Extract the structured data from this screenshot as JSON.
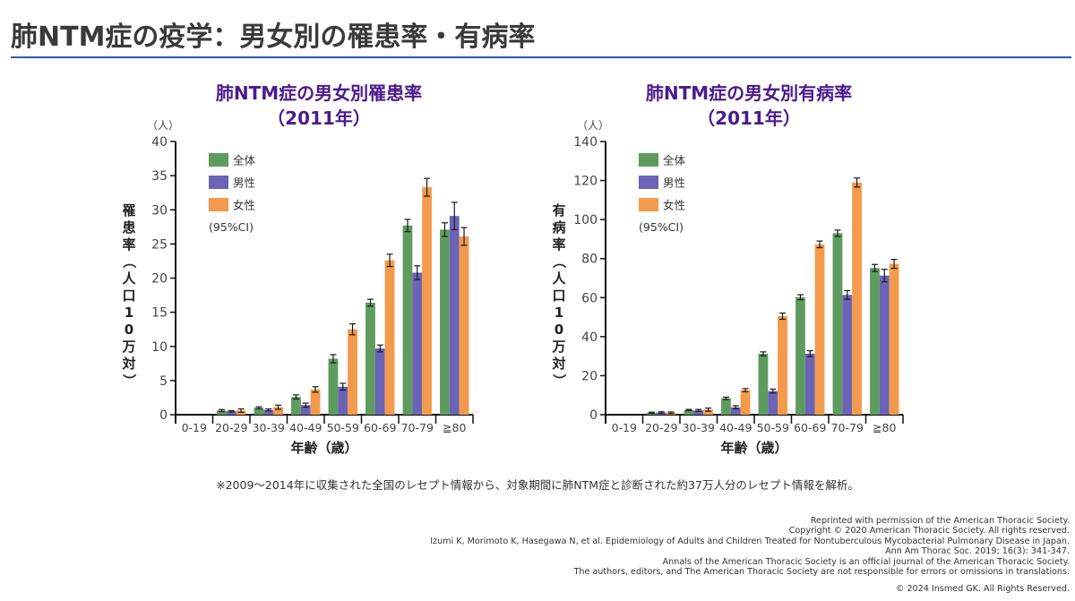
{
  "header": {
    "title": "肺NTM症の疫学：男女別の罹患率・有病率",
    "rule_color": "#2a5db0"
  },
  "colors": {
    "overall": "#5e9b5e",
    "male": "#6b63b5",
    "female": "#f39a4c",
    "chart_title": "#4b1a8c"
  },
  "chart_data": [
    {
      "type": "bar",
      "title": "肺NTM症の男女別罹患率",
      "subtitle": "（2011年）",
      "xlabel": "年齢（歳）",
      "ylabel": "罹患率（人口10万対）",
      "unit": "（人）",
      "ylim": [
        0,
        40
      ],
      "yticks": [
        0,
        5,
        10,
        15,
        20,
        25,
        30,
        35,
        40
      ],
      "categories": [
        "0-19",
        "20-29",
        "30-39",
        "40-49",
        "50-59",
        "60-69",
        "70-79",
        "≧80"
      ],
      "legend": {
        "placement": "top-left",
        "note": "(95%CI)"
      },
      "series": [
        {
          "name": "全体",
          "key": "overall",
          "values": [
            0,
            0.6,
            1.0,
            2.6,
            8.2,
            16.4,
            27.7,
            27.1
          ],
          "ci": [
            0,
            0.15,
            0.15,
            0.3,
            0.6,
            0.5,
            0.9,
            1.0
          ]
        },
        {
          "name": "男性",
          "key": "male",
          "values": [
            0,
            0.5,
            0.7,
            1.4,
            4.1,
            9.7,
            20.8,
            29.1
          ],
          "ci": [
            0,
            0.1,
            0.15,
            0.3,
            0.5,
            0.5,
            1.0,
            2.0
          ]
        },
        {
          "name": "女性",
          "key": "female",
          "values": [
            0,
            0.6,
            1.1,
            3.7,
            12.5,
            22.6,
            33.3,
            26.1
          ],
          "ci": [
            0,
            0.25,
            0.3,
            0.4,
            0.8,
            0.9,
            1.3,
            1.3
          ]
        }
      ],
      "grid": false
    },
    {
      "type": "bar",
      "title": "肺NTM症の男女別有病率",
      "subtitle": "（2011年）",
      "xlabel": "年齢（歳）",
      "ylabel": "有病率（人口10万対）",
      "unit": "（人）",
      "ylim": [
        0,
        140
      ],
      "yticks": [
        0,
        20,
        40,
        60,
        80,
        100,
        120,
        140
      ],
      "categories": [
        "0-19",
        "20-29",
        "30-39",
        "40-49",
        "50-59",
        "60-69",
        "70-79",
        "≧80"
      ],
      "legend": {
        "placement": "top-left",
        "note": "(95%CI)"
      },
      "series": [
        {
          "name": "全体",
          "key": "overall",
          "values": [
            0,
            1.0,
            2.4,
            8.4,
            31.2,
            60.2,
            93.0,
            75.2
          ],
          "ci": [
            0,
            0.3,
            0.3,
            0.6,
            1.0,
            1.3,
            1.6,
            1.8
          ]
        },
        {
          "name": "男性",
          "key": "male",
          "values": [
            0,
            1.1,
            2.2,
            3.8,
            12.1,
            31.3,
            61.4,
            71.3
          ],
          "ci": [
            0,
            0.4,
            0.5,
            0.8,
            1.0,
            1.5,
            2.2,
            3.2
          ]
        },
        {
          "name": "女性",
          "key": "female",
          "values": [
            0,
            1.0,
            2.6,
            12.6,
            50.5,
            87.3,
            119.0,
            77.3
          ],
          "ci": [
            0,
            0.4,
            0.8,
            0.8,
            1.6,
            1.7,
            2.3,
            2.3
          ]
        }
      ],
      "grid": false
    }
  ],
  "footnote": "※2009～2014年に収集された全国のレセプト情報から、対象期間に肺NTM症と診断された約37万人分のレセプト情報を解析。",
  "credits": [
    "Reprinted with permission of the American Thoracic Society.",
    "Copyright © 2020 American Thoracic Society. All rights reserved.",
    "Izumi K, Morimoto K, Hasegawa N, et al. Epidemiology of Adults and Children Treated for Nontuberculous Mycobacterial Pulmonary Disease in Japan.",
    "Ann Am Thorac Soc. 2019; 16(3): 341-347.",
    "Annals of the American Thoracic Society is an official journal of the American Thoracic Society.",
    "The authors, editors, and The American Thoracic Society are not responsible for errors or omissions in translations."
  ],
  "copyright": "© 2024 Insmed GK. All Rights Reserved."
}
